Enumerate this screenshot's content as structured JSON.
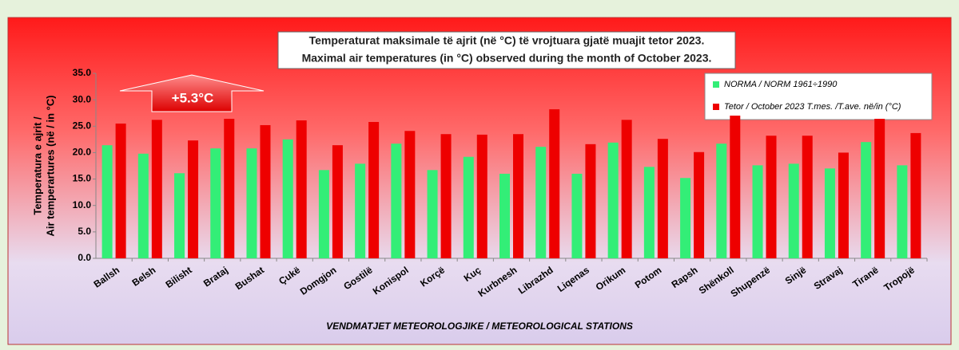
{
  "chart_data": {
    "type": "bar",
    "title": "Temperaturat maksimale të ajrit (në °C) të vrojtuara gjatë muajit tetor 2023.",
    "subtitle": "Maximal air temperatures (in °C) observed during the month of October 2023.",
    "y_label": [
      "Temperatura e ajrit /",
      "Air temperartures (në / in °C)"
    ],
    "x_label": "VENDMATJET  METEOROLOGJIKE / METEOROLOGICAL STATIONS",
    "annotation": "+5.3°C",
    "categories": [
      "Ballsh",
      "Belsh",
      "Bilisht",
      "Brataj",
      "Bushat",
      "Çukë",
      "Domgjon",
      "Gostilë",
      "Konispol",
      "Korçë",
      "Kuç",
      "Kurbnesh",
      "Librazhd",
      "Liqenas",
      "Orikum",
      "Potom",
      "Rapsh",
      "Shënkoll",
      "Shupenzë",
      "Sinjë",
      "Stravaj",
      "Tiranë",
      "Tropojë"
    ],
    "series": [
      {
        "name": "NORMA / NORM 1961÷1990",
        "color": "#33ee77",
        "values": [
          21.4,
          19.8,
          16.1,
          20.8,
          20.8,
          22.5,
          16.7,
          17.9,
          21.7,
          16.7,
          19.2,
          16.0,
          21.1,
          16.0,
          21.9,
          17.3,
          15.2,
          21.7,
          17.6,
          17.9,
          17.0,
          22.0,
          17.6
        ]
      },
      {
        "name": "Tetor / October 2023  T.mes. /T.ave. në/in (°C)",
        "color": "#ee0000",
        "values": [
          25.5,
          26.2,
          22.3,
          26.4,
          25.2,
          26.1,
          21.4,
          25.8,
          24.1,
          23.5,
          23.4,
          23.5,
          28.2,
          21.6,
          26.2,
          22.6,
          20.1,
          27.0,
          23.2,
          23.2,
          20.0,
          26.4,
          23.7
        ]
      }
    ],
    "ylim": [
      0,
      35
    ],
    "yticks": [
      {
        "value": 0,
        "label": "0.0"
      },
      {
        "value": 5,
        "label": "5.0"
      },
      {
        "value": 10,
        "label": "10.0"
      },
      {
        "value": 15,
        "label": "15.0"
      },
      {
        "value": 20,
        "label": "20.0"
      },
      {
        "value": 25,
        "label": "25.0"
      },
      {
        "value": 30,
        "label": "30.0"
      },
      {
        "value": 35,
        "label": "35.0"
      }
    ],
    "legend": "top-right"
  }
}
